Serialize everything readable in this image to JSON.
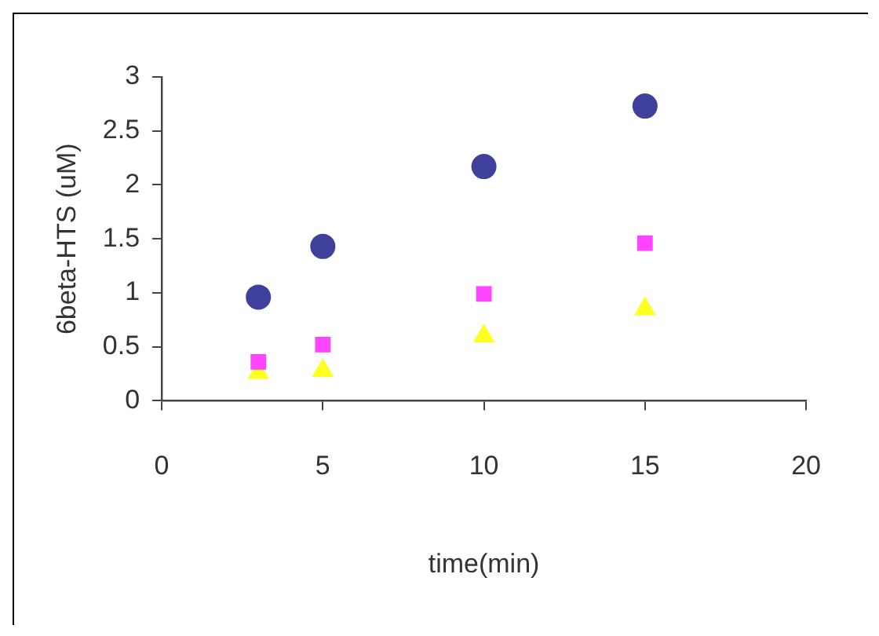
{
  "chart_data": {
    "type": "scatter",
    "xlabel": "time(min)",
    "ylabel": "6beta-HTS (uM)",
    "x": [
      3,
      5,
      10,
      15
    ],
    "series": [
      {
        "color": "#3f3f9c",
        "marker": "circle",
        "values": [
          0.96,
          1.43,
          2.17,
          2.73
        ]
      },
      {
        "color": "#ff44ff",
        "marker": "square",
        "values": [
          0.36,
          0.52,
          0.99,
          1.46
        ]
      },
      {
        "color": "#ffff22",
        "marker": "triangle",
        "values": [
          0.26,
          0.28,
          0.6,
          0.85
        ]
      }
    ],
    "xlim": [
      0,
      20
    ],
    "xticks": [
      0,
      5,
      10,
      15,
      20
    ],
    "ylim": [
      0,
      3
    ],
    "yticks": [
      0,
      0.5,
      1,
      1.5,
      2,
      2.5,
      3
    ],
    "grid": false,
    "legend": false
  }
}
